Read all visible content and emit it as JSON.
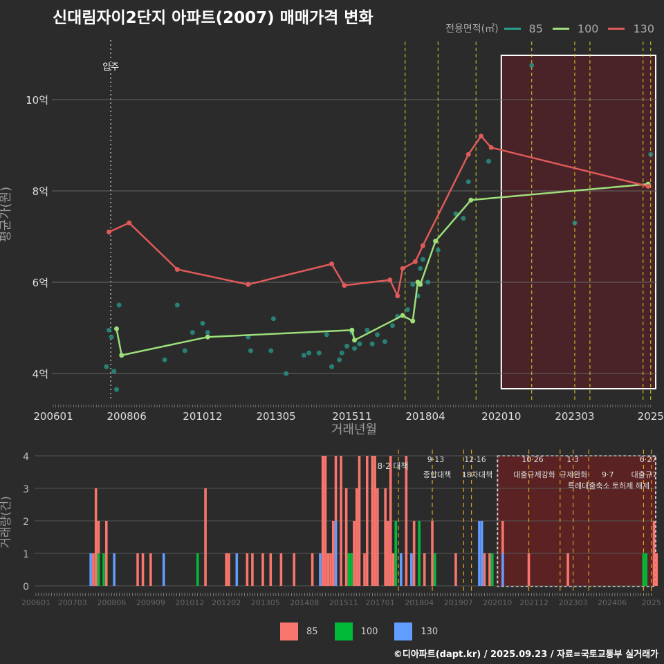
{
  "title": "신대림자이2단지 아파트(2007) 매매가격 변화",
  "footer": "©디아파트(dapt.kr) / 2025.09.23 / 자료=국토교통부 실거래가",
  "chart_data": [
    {
      "type": "line",
      "title": "신대림자이2단지 아파트(2007) 매매가격 변화",
      "xlabel": "거래년월",
      "ylabel": "평균가(원)",
      "legend_title": "전용면적(㎡)",
      "legend_position": "top-right",
      "x_ticks": [
        "200601",
        "200806",
        "201012",
        "201305",
        "201511",
        "201804",
        "202010",
        "202303",
        "2025"
      ],
      "y_ticks": [
        {
          "v": 4,
          "label": "4억"
        },
        {
          "v": 6,
          "label": "6억"
        },
        {
          "v": 8,
          "label": "8억"
        },
        {
          "v": 10,
          "label": "10억"
        }
      ],
      "ylim": [
        3.3,
        11.5
      ],
      "annotation": "입주",
      "annotation_month": "200712",
      "policy_months": [
        "201708",
        "201809",
        "201912",
        "202110",
        "202303",
        "202309",
        "202506",
        "202509"
      ],
      "highlight_range": [
        "202010",
        "202509"
      ],
      "series": [
        {
          "name": "85",
          "color": "#2a9d8f",
          "points": [
            [
              "200710",
              4.15
            ],
            [
              "200711",
              4.95
            ],
            [
              "200712",
              4.8
            ],
            [
              "200801",
              4.05
            ],
            [
              "200802",
              3.65
            ],
            [
              "200803",
              5.5
            ],
            [
              "200909",
              4.3
            ],
            [
              "201002",
              5.5
            ],
            [
              "201005",
              4.5
            ],
            [
              "201008",
              4.9
            ],
            [
              "201012",
              5.1
            ],
            [
              "201102",
              4.9
            ],
            [
              "201206",
              4.8
            ],
            [
              "201207",
              4.5
            ],
            [
              "201303",
              4.5
            ],
            [
              "201304",
              5.2
            ],
            [
              "201309",
              4.0
            ],
            [
              "201404",
              4.4
            ],
            [
              "201406",
              4.45
            ],
            [
              "201410",
              4.45
            ],
            [
              "201501",
              4.85
            ],
            [
              "201503",
              4.15
            ],
            [
              "201506",
              4.3
            ],
            [
              "201507",
              4.45
            ],
            [
              "201509",
              4.6
            ],
            [
              "201511",
              4.9
            ],
            [
              "201512",
              4.55
            ],
            [
              "201602",
              4.65
            ],
            [
              "201605",
              4.95
            ],
            [
              "201607",
              4.65
            ],
            [
              "201609",
              4.85
            ],
            [
              "201612",
              4.7
            ],
            [
              "201703",
              5.05
            ],
            [
              "201705",
              5.25
            ],
            [
              "201709",
              5.4
            ],
            [
              "201711",
              5.95
            ],
            [
              "201801",
              5.7
            ],
            [
              "201802",
              6.3
            ],
            [
              "201803",
              6.5
            ],
            [
              "201805",
              6.0
            ],
            [
              "201809",
              6.7
            ],
            [
              "201904",
              7.5
            ],
            [
              "201907",
              7.4
            ],
            [
              "201909",
              8.2
            ],
            [
              "202005",
              8.65
            ],
            [
              "202110",
              10.75
            ],
            [
              "202303",
              7.3
            ],
            [
              "202509",
              8.8
            ]
          ]
        },
        {
          "name": "100",
          "color": "#9de07a",
          "points": [
            [
              "200802",
              4.98
            ],
            [
              "200804",
              4.4
            ],
            [
              "201102",
              4.8
            ],
            [
              "201511",
              4.95
            ],
            [
              "201512",
              4.73
            ],
            [
              "201707",
              5.27
            ],
            [
              "201711",
              5.15
            ],
            [
              "201801",
              6.0
            ],
            [
              "201802",
              5.95
            ],
            [
              "201808",
              6.9
            ],
            [
              "201910",
              7.8
            ],
            [
              "202508",
              8.15
            ]
          ]
        },
        {
          "name": "130",
          "color": "#e05a5a",
          "points": [
            [
              "200711",
              7.1
            ],
            [
              "200807",
              7.3
            ],
            [
              "201002",
              6.28
            ],
            [
              "201206",
              5.95
            ],
            [
              "201503",
              6.4
            ],
            [
              "201508",
              5.93
            ],
            [
              "201702",
              6.05
            ],
            [
              "201705",
              5.7
            ],
            [
              "201707",
              6.3
            ],
            [
              "201712",
              6.45
            ],
            [
              "201803",
              6.8
            ],
            [
              "201909",
              8.8
            ],
            [
              "202002",
              9.2
            ],
            [
              "202006",
              8.95
            ],
            [
              "202508",
              8.1
            ]
          ]
        }
      ]
    },
    {
      "type": "bar",
      "ylabel": "거래량(건)",
      "ylim": [
        0,
        4
      ],
      "x_ticks": [
        "200601",
        "200703",
        "200806",
        "200909",
        "201012",
        "201202",
        "201305",
        "201408",
        "201511",
        "201701",
        "201804",
        "201907",
        "202010",
        "202112",
        "202303",
        "202406",
        "2025"
      ],
      "y_ticks": [
        0,
        1,
        2,
        3,
        4
      ],
      "highlight_range": [
        "202010",
        "202509"
      ],
      "policy_months": [
        "201708",
        "201809",
        "201909",
        "201912",
        "202110",
        "202210",
        "202303",
        "202309",
        "202506",
        "202509"
      ],
      "annotations": [
        {
          "date": "",
          "text": "8·2 대책"
        },
        {
          "date": "9·13",
          "text": "종합대책"
        },
        {
          "date": "12·16",
          "text": "18차대책"
        },
        {
          "date": "10·26",
          "text": "대출규제강화"
        },
        {
          "date": "1·3",
          "text": "규제완화"
        },
        {
          "date": "9·7",
          "text": "특례대출축소 토허제 해제"
        },
        {
          "date": "6·27",
          "text": "대출규7"
        }
      ],
      "series": [
        {
          "name": "85",
          "color": "#f8766d",
          "bars": [
            [
              22,
              1
            ],
            [
              23,
              3
            ],
            [
              24,
              2
            ],
            [
              27,
              2
            ],
            [
              39,
              1
            ],
            [
              41,
              1
            ],
            [
              44,
              1
            ],
            [
              65,
              3
            ],
            [
              73,
              1
            ],
            [
              74,
              1
            ],
            [
              81,
              1
            ],
            [
              83,
              1
            ],
            [
              87,
              1
            ],
            [
              90,
              1
            ],
            [
              94,
              1
            ],
            [
              99,
              1
            ],
            [
              106,
              1
            ],
            [
              110,
              4
            ],
            [
              111,
              4
            ],
            [
              112,
              1
            ],
            [
              113,
              1
            ],
            [
              114,
              2
            ],
            [
              115,
              4
            ],
            [
              117,
              4
            ],
            [
              119,
              3
            ],
            [
              122,
              2
            ],
            [
              123,
              3
            ],
            [
              124,
              4
            ],
            [
              126,
              1
            ],
            [
              127,
              4
            ],
            [
              129,
              4
            ],
            [
              130,
              4
            ],
            [
              131,
              3
            ],
            [
              134,
              3
            ],
            [
              135,
              2
            ],
            [
              136,
              4
            ],
            [
              137,
              1
            ],
            [
              138,
              1
            ],
            [
              140,
              1
            ],
            [
              142,
              4
            ],
            [
              144,
              1
            ],
            [
              145,
              2
            ],
            [
              147,
              1
            ],
            [
              149,
              1
            ],
            [
              152,
              2
            ],
            [
              161,
              1
            ],
            [
              172,
              1
            ],
            [
              174,
              1
            ],
            [
              175,
              1
            ],
            [
              179,
              2
            ],
            [
              189,
              1
            ],
            [
              204,
              1
            ],
            [
              237,
              2
            ],
            [
              238,
              1
            ]
          ]
        },
        {
          "name": "100",
          "color": "#00ba38",
          "bars": [
            [
              24,
              1
            ],
            [
              26,
              1
            ],
            [
              62,
              1
            ],
            [
              120,
              1
            ],
            [
              121,
              1
            ],
            [
              138,
              2
            ],
            [
              147,
              2
            ],
            [
              153,
              1
            ],
            [
              175,
              1
            ],
            [
              233,
              1
            ],
            [
              234,
              1
            ]
          ]
        },
        {
          "name": "130",
          "color": "#619cff",
          "bars": [
            [
              21,
              1
            ],
            [
              30,
              1
            ],
            [
              49,
              1
            ],
            [
              77,
              1
            ],
            [
              109,
              1
            ],
            [
              115,
              2
            ],
            [
              140,
              1
            ],
            [
              144,
              1
            ],
            [
              170,
              2
            ],
            [
              171,
              2
            ],
            [
              179,
              1
            ]
          ]
        }
      ],
      "legend": [
        {
          "name": "85",
          "color": "#f8766d"
        },
        {
          "name": "100",
          "color": "#00ba38"
        },
        {
          "name": "130",
          "color": "#619cff"
        }
      ]
    }
  ]
}
